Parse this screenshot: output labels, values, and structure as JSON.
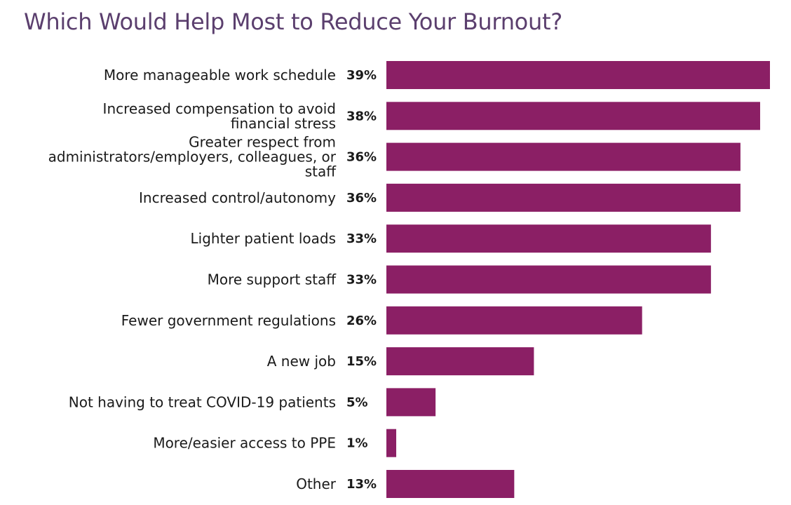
{
  "chart_data": {
    "type": "bar",
    "orientation": "horizontal",
    "title": "Which Would Help Most to Reduce Your Burnout?",
    "categories": [
      [
        "More manageable work schedule"
      ],
      [
        "Increased compensation to avoid",
        "financial stress"
      ],
      [
        "Greater respect from",
        "administrators/employers, colleagues, or",
        "staff"
      ],
      [
        "Increased control/autonomy"
      ],
      [
        "Lighter patient loads"
      ],
      [
        "More support staff"
      ],
      [
        "Fewer government regulations"
      ],
      [
        "A new job"
      ],
      [
        "Not having to treat COVID-19 patients"
      ],
      [
        "More/easier access to PPE"
      ],
      [
        "Other"
      ]
    ],
    "values": [
      39,
      38,
      36,
      36,
      33,
      33,
      26,
      15,
      5,
      1,
      13
    ],
    "value_labels": [
      "39%",
      "38%",
      "36%",
      "36%",
      "33%",
      "33%",
      "26%",
      "15%",
      "5%",
      "1%",
      "13%"
    ],
    "bar_color": "#8b1f65",
    "title_color": "#5b3f6e",
    "xlim": [
      0,
      39
    ],
    "grid": false,
    "legend": "none"
  }
}
